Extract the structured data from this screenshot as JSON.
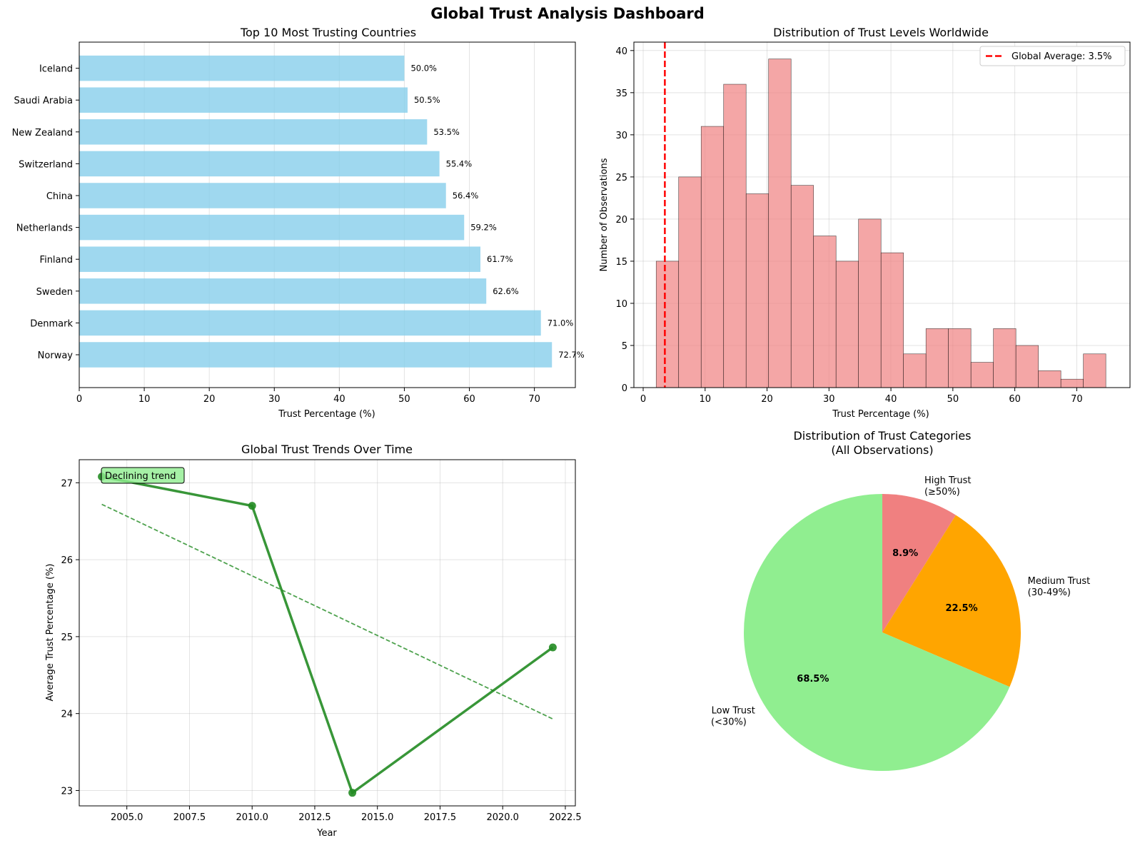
{
  "suptitle": "Global Trust Analysis Dashboard",
  "chart_data": [
    {
      "type": "bar",
      "orientation": "horizontal",
      "title": "Top 10 Most Trusting Countries",
      "xlabel": "Trust Percentage (%)",
      "ylabel": "",
      "xlim": [
        0,
        76.3
      ],
      "xticks": [
        0,
        10,
        20,
        30,
        40,
        50,
        60,
        70
      ],
      "categories": [
        "Norway",
        "Denmark",
        "Sweden",
        "Finland",
        "Netherlands",
        "China",
        "Switzerland",
        "New Zealand",
        "Saudi Arabia",
        "Iceland"
      ],
      "values": [
        72.7,
        71.0,
        62.6,
        61.7,
        59.2,
        56.4,
        55.4,
        53.5,
        50.5,
        50.0
      ],
      "value_labels": [
        "72.7%",
        "71.0%",
        "62.6%",
        "61.7%",
        "59.2%",
        "56.4%",
        "55.4%",
        "53.5%",
        "50.5%",
        "50.0%"
      ],
      "color": "#87ceeb",
      "grid": true
    },
    {
      "type": "bar",
      "subtype": "histogram",
      "title": "Distribution of Trust Levels Worldwide",
      "xlabel": "Trust Percentage (%)",
      "ylabel": "Number of Observations",
      "xlim": [
        -1.5,
        78.6
      ],
      "ylim": [
        0,
        41
      ],
      "xticks": [
        0,
        10,
        20,
        30,
        40,
        50,
        60,
        70
      ],
      "yticks": [
        0,
        5,
        10,
        15,
        20,
        25,
        30,
        35,
        40
      ],
      "bin_start": 2.1,
      "bin_width": 3.63,
      "counts": [
        15,
        25,
        31,
        36,
        23,
        39,
        24,
        18,
        15,
        20,
        16,
        4,
        7,
        7,
        3,
        7,
        5,
        2,
        1,
        4
      ],
      "color": "#f08080",
      "reference_line": {
        "x": 3.5,
        "color": "#ff0000",
        "label": "Global Average: 3.5%"
      },
      "legend": "top-right",
      "grid": true
    },
    {
      "type": "line",
      "title": "Global Trust Trends Over Time",
      "xlabel": "Year",
      "ylabel": "Average Trust Percentage (%)",
      "xlim": [
        2003.1,
        2022.9
      ],
      "ylim": [
        22.8,
        27.3
      ],
      "xticks": [
        2005.0,
        2007.5,
        2010.0,
        2012.5,
        2015.0,
        2017.5,
        2020.0,
        2022.5
      ],
      "xtick_labels": [
        "2005.0",
        "2007.5",
        "2010.0",
        "2012.5",
        "2015.0",
        "2017.5",
        "2020.0",
        "2022.5"
      ],
      "yticks": [
        23,
        24,
        25,
        26,
        27
      ],
      "x": [
        2004,
        2010,
        2014,
        2022
      ],
      "y": [
        27.08,
        26.7,
        22.97,
        24.86
      ],
      "trend": {
        "x": [
          2004,
          2022
        ],
        "y": [
          26.72,
          23.93
        ]
      },
      "annotation": "Declining trend",
      "color": "#228b22",
      "grid": true
    },
    {
      "type": "pie",
      "title": "Distribution of Trust Categories",
      "subtitle": "(All Observations)",
      "slices": [
        {
          "label_line1": "High Trust",
          "label_line2": "(≥50%)",
          "value": 8.9,
          "pct_label": "8.9%",
          "color": "#f08080"
        },
        {
          "label_line1": "Medium Trust",
          "label_line2": "(30-49%)",
          "value": 22.5,
          "pct_label": "22.5%",
          "color": "#ffa500"
        },
        {
          "label_line1": "Low Trust",
          "label_line2": "(<30%)",
          "value": 68.5,
          "pct_label": "68.5%",
          "color": "#90ee90"
        }
      ]
    }
  ]
}
